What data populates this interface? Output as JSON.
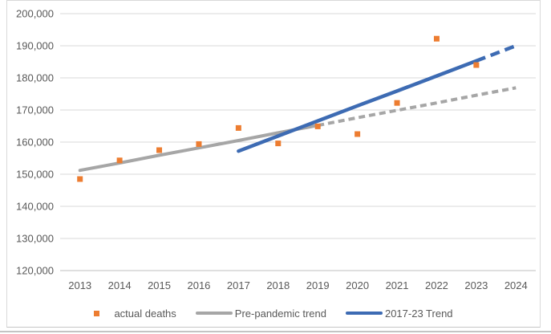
{
  "chart_data": {
    "type": "line",
    "title": "",
    "categories": [
      "2013",
      "2014",
      "2015",
      "2016",
      "2017",
      "2018",
      "2019",
      "2020",
      "2021",
      "2022",
      "2023",
      "2024"
    ],
    "y_axis": {
      "min": 120000,
      "max": 200000,
      "step": 10000,
      "tick_labels": [
        "120,000",
        "130,000",
        "140,000",
        "150,000",
        "160,000",
        "170,000",
        "180,000",
        "190,000",
        "200,000"
      ]
    },
    "series": [
      {
        "name": "actual deaths",
        "type": "scatter",
        "marker": "square",
        "color": "#ED7D31",
        "values": [
          148500,
          154300,
          157500,
          159400,
          164400,
          159600,
          164900,
          162500,
          172200,
          192200,
          184000,
          null
        ]
      },
      {
        "name": "Pre-pandemic trend",
        "type": "line",
        "color": "#A6A6A6",
        "solid_through": "2019",
        "values": [
          151200,
          153500,
          155900,
          158200,
          160500,
          162900,
          165200,
          167600,
          169900,
          172200,
          174600,
          176900
        ]
      },
      {
        "name": "2017-23 Trend",
        "type": "line",
        "color": "#3D6BB3",
        "solid_through": "2023",
        "values": [
          null,
          null,
          null,
          null,
          157200,
          161900,
          166600,
          171300,
          175900,
          180600,
          185300,
          190000
        ]
      }
    ],
    "legend": {
      "position": "bottom",
      "entries": [
        "actual deaths",
        "Pre-pandemic trend",
        "2017-23 Trend"
      ]
    },
    "gridlines": true,
    "colors": {
      "gridline": "#d9d9d9",
      "baseline": "#bfbfbf",
      "tick_text": "#595959"
    }
  }
}
